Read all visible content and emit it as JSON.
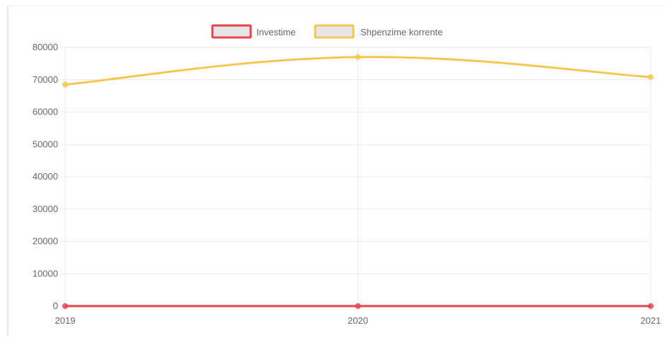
{
  "chart_data": {
    "type": "line",
    "categories": [
      "2019",
      "2020",
      "2021"
    ],
    "series": [
      {
        "name": "Investime",
        "values": [
          0,
          0,
          0
        ],
        "color": "#e8434b"
      },
      {
        "name": "Shpenzime korrente",
        "values": [
          68500,
          77000,
          70800
        ],
        "color": "#f6c652"
      }
    ],
    "ylim": [
      0,
      80000
    ],
    "yticks": [
      "0",
      "10000",
      "20000",
      "30000",
      "40000",
      "50000",
      "60000",
      "70000",
      "80000"
    ],
    "grid": true,
    "legend_position": "top",
    "legend_fill": "#e6e6e6"
  }
}
